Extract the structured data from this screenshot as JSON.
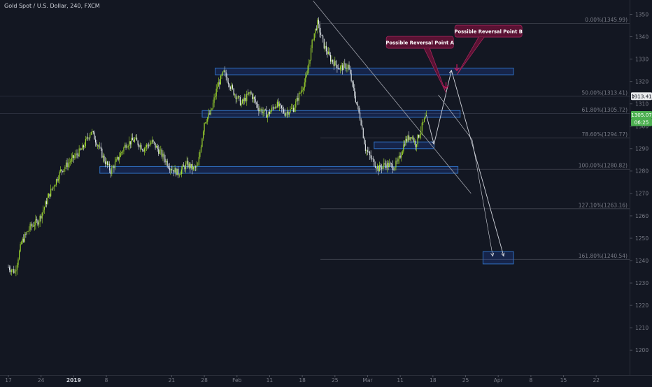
{
  "header": {
    "symbol_title": "Gold Spot / U.S. Dollar, 240, FXCM"
  },
  "colors": {
    "background": "#131722",
    "candle_up": "#a6e22e",
    "candle_down": "#e8eef2",
    "zone_fill": "rgba(41,98,255,0.18)",
    "zone_stroke": "#2f6fc1",
    "fib_line": "#434651",
    "fib_text": "#787b86",
    "trend_line": "#9598a1",
    "path_line": "#d1d4dc",
    "callout_fill": "#5a1233",
    "callout_stroke": "#a3245a",
    "marker": "#c2185b",
    "last_price_bg": "#4caf50",
    "label_bg": "#e8eaed"
  },
  "chart_data": {
    "type": "candlestick",
    "ylim": [
      1192,
      1356
    ],
    "y_ticks": [
      1200,
      1210,
      1220,
      1230,
      1240,
      1250,
      1260,
      1270,
      1280,
      1290,
      1300,
      1310,
      1320,
      1330,
      1340,
      1350
    ],
    "x_ticks": [
      {
        "label": "17",
        "bar": 0
      },
      {
        "label": "24",
        "bar": 30
      },
      {
        "label": "2019",
        "bar": 60,
        "bold": true
      },
      {
        "label": "8",
        "bar": 90
      },
      {
        "label": "21",
        "bar": 150
      },
      {
        "label": "28",
        "bar": 180
      },
      {
        "label": "Feb",
        "bar": 210
      },
      {
        "label": "11",
        "bar": 240
      },
      {
        "label": "18",
        "bar": 270
      },
      {
        "label": "25",
        "bar": 300
      },
      {
        "label": "Mar",
        "bar": 330
      },
      {
        "label": "11",
        "bar": 360
      },
      {
        "label": "18",
        "bar": 390
      },
      {
        "label": "25",
        "bar": 420
      },
      {
        "label": "Apr",
        "bar": 450
      },
      {
        "label": "8",
        "bar": 480
      },
      {
        "label": "15",
        "bar": 510
      },
      {
        "label": "22",
        "bar": 540
      }
    ],
    "price_path_waypoints": [
      [
        0,
        1237
      ],
      [
        6,
        1235
      ],
      [
        12,
        1248
      ],
      [
        20,
        1255
      ],
      [
        28,
        1258
      ],
      [
        38,
        1270
      ],
      [
        48,
        1280
      ],
      [
        58,
        1285
      ],
      [
        68,
        1290
      ],
      [
        76,
        1298
      ],
      [
        82,
        1292
      ],
      [
        88,
        1285
      ],
      [
        94,
        1280
      ],
      [
        100,
        1285
      ],
      [
        108,
        1292
      ],
      [
        116,
        1294
      ],
      [
        124,
        1290
      ],
      [
        132,
        1293
      ],
      [
        140,
        1288
      ],
      [
        148,
        1282
      ],
      [
        156,
        1279
      ],
      [
        164,
        1283
      ],
      [
        170,
        1281
      ],
      [
        174,
        1282
      ],
      [
        180,
        1302
      ],
      [
        186,
        1306
      ],
      [
        192,
        1318
      ],
      [
        198,
        1324
      ],
      [
        206,
        1316
      ],
      [
        214,
        1310
      ],
      [
        222,
        1315
      ],
      [
        230,
        1308
      ],
      [
        238,
        1305
      ],
      [
        246,
        1310
      ],
      [
        254,
        1306
      ],
      [
        262,
        1308
      ],
      [
        268,
        1315
      ],
      [
        274,
        1322
      ],
      [
        280,
        1340
      ],
      [
        284,
        1346
      ],
      [
        290,
        1336
      ],
      [
        296,
        1330
      ],
      [
        304,
        1326
      ],
      [
        312,
        1327
      ],
      [
        318,
        1314
      ],
      [
        324,
        1302
      ],
      [
        328,
        1290
      ],
      [
        334,
        1285
      ],
      [
        340,
        1281
      ],
      [
        346,
        1283
      ],
      [
        354,
        1282
      ],
      [
        358,
        1284
      ],
      [
        364,
        1293
      ],
      [
        370,
        1296
      ],
      [
        374,
        1292
      ],
      [
        380,
        1300
      ],
      [
        384,
        1305
      ]
    ],
    "fib_levels": [
      {
        "label": "0.00%(1345.99)",
        "price": 1345.99
      },
      {
        "label": "50.00%(1313.41)",
        "price": 1313.41
      },
      {
        "label": "61.80%(1305.72)",
        "price": 1305.72
      },
      {
        "label": "78.60%(1294.77)",
        "price": 1294.77
      },
      {
        "label": "100.00%(1280.82)",
        "price": 1280.82
      },
      {
        "label": "127.10%(1263.16)",
        "price": 1263.16
      },
      {
        "label": "161.80%(1240.54)",
        "price": 1240.54
      }
    ],
    "zones": [
      {
        "x0": 190,
        "x1": 464,
        "p_top": 1326,
        "p_bottom": 1323
      },
      {
        "x0": 178,
        "x1": 415,
        "p_top": 1307,
        "p_bottom": 1304
      },
      {
        "x0": 336,
        "x1": 391,
        "p_top": 1293,
        "p_bottom": 1290
      },
      {
        "x0": 84,
        "x1": 413,
        "p_top": 1282,
        "p_bottom": 1279
      },
      {
        "x0": 436,
        "x1": 464,
        "p_top": 1244,
        "p_bottom": 1238.5
      }
    ],
    "trendline": {
      "b1": 280,
      "p1": 1356,
      "b2": 425,
      "p2": 1270
    },
    "projection_path": [
      [
        384,
        1305
      ],
      [
        391,
        1292
      ],
      [
        407,
        1325
      ],
      [
        455,
        1242
      ]
    ],
    "projection_path_b": [
      [
        395,
        1314
      ],
      [
        426,
        1294
      ],
      [
        445,
        1242
      ]
    ],
    "callouts": [
      {
        "text": "Possible Reversal Point A",
        "bar": 378,
        "price": 1337.5,
        "tail_bar": 402,
        "tail_price": 1315
      },
      {
        "text": "Possible Reversal Point B",
        "bar": 441,
        "price": 1342.5,
        "tail_bar": 412,
        "tail_price": 1323
      }
    ],
    "price_labels": [
      {
        "text": "1313.41",
        "price": 1313.41,
        "style": "light"
      },
      {
        "text": "1305.07",
        "price": 1305.07,
        "style": "green"
      },
      {
        "text": "06:25",
        "price": 1301.8,
        "style": "green"
      }
    ]
  }
}
